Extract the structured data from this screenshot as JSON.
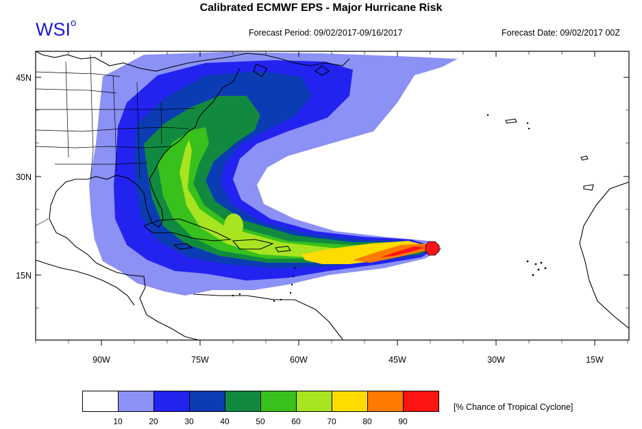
{
  "title": "Calibrated ECMWF EPS - Major Hurricane Risk",
  "brand": "WSI",
  "brand_mark": "o",
  "forecast_period": "Forecast Period: 09/02/2017-09/16/2017",
  "forecast_date": "Forecast Date: 09/02/2017 00Z",
  "axes": {
    "lon_labels": [
      "90W",
      "75W",
      "60W",
      "45W",
      "30W",
      "15W"
    ],
    "lat_labels": [
      "45N",
      "30N",
      "15N"
    ]
  },
  "legend": {
    "unit_label": "[% Chance of Tropical Cyclone]",
    "tick_labels": [
      "10",
      "20",
      "30",
      "40",
      "50",
      "60",
      "70",
      "80",
      "90"
    ],
    "colors": [
      "#ffffff",
      "#8c91f5",
      "#2323f0",
      "#0c3cb4",
      "#118a40",
      "#38c01c",
      "#a8e420",
      "#ffdc00",
      "#ff7a00",
      "#ff1414"
    ]
  }
}
